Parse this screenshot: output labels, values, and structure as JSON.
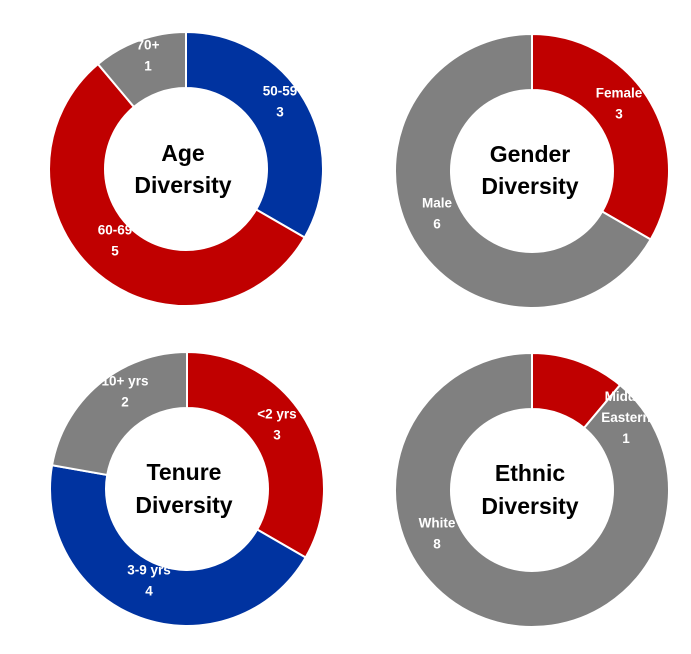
{
  "colors": {
    "red": "#C00000",
    "blue": "#0033A0",
    "gray": "#808080"
  },
  "chart_data": [
    {
      "type": "pie",
      "variant": "donut",
      "title": [
        "Age",
        "Diversity"
      ],
      "categories": [
        "50-59",
        "60-69",
        "70+"
      ],
      "values": [
        3,
        5,
        1
      ],
      "colors": [
        "#0033A0",
        "#C00000",
        "#808080"
      ],
      "labels": [
        [
          "50-59",
          "3"
        ],
        [
          "60-69",
          "5"
        ],
        [
          "70+",
          "1"
        ]
      ]
    },
    {
      "type": "pie",
      "variant": "donut",
      "title": [
        "Gender",
        "Diversity"
      ],
      "categories": [
        "Female",
        "Male"
      ],
      "values": [
        3,
        6
      ],
      "colors": [
        "#C00000",
        "#808080"
      ],
      "labels": [
        [
          "Female",
          "3"
        ],
        [
          "Male",
          "6"
        ]
      ]
    },
    {
      "type": "pie",
      "variant": "donut",
      "title": [
        "Tenure",
        "Diversity"
      ],
      "categories": [
        "<2 yrs",
        "3-9 yrs",
        "10+ yrs"
      ],
      "values": [
        3,
        4,
        2
      ],
      "colors": [
        "#C00000",
        "#0033A0",
        "#808080"
      ],
      "labels": [
        [
          "<2 yrs",
          "3"
        ],
        [
          "3-9 yrs",
          "4"
        ],
        [
          "10+ yrs",
          "2"
        ]
      ]
    },
    {
      "type": "pie",
      "variant": "donut",
      "title": [
        "Ethnic",
        "Diversity"
      ],
      "categories": [
        "Middle Eastern",
        "White"
      ],
      "values": [
        1,
        8
      ],
      "colors": [
        "#C00000",
        "#808080"
      ],
      "labels": [
        [
          "Middle",
          "Eastern",
          "1"
        ],
        [
          "White",
          "8"
        ]
      ]
    }
  ]
}
